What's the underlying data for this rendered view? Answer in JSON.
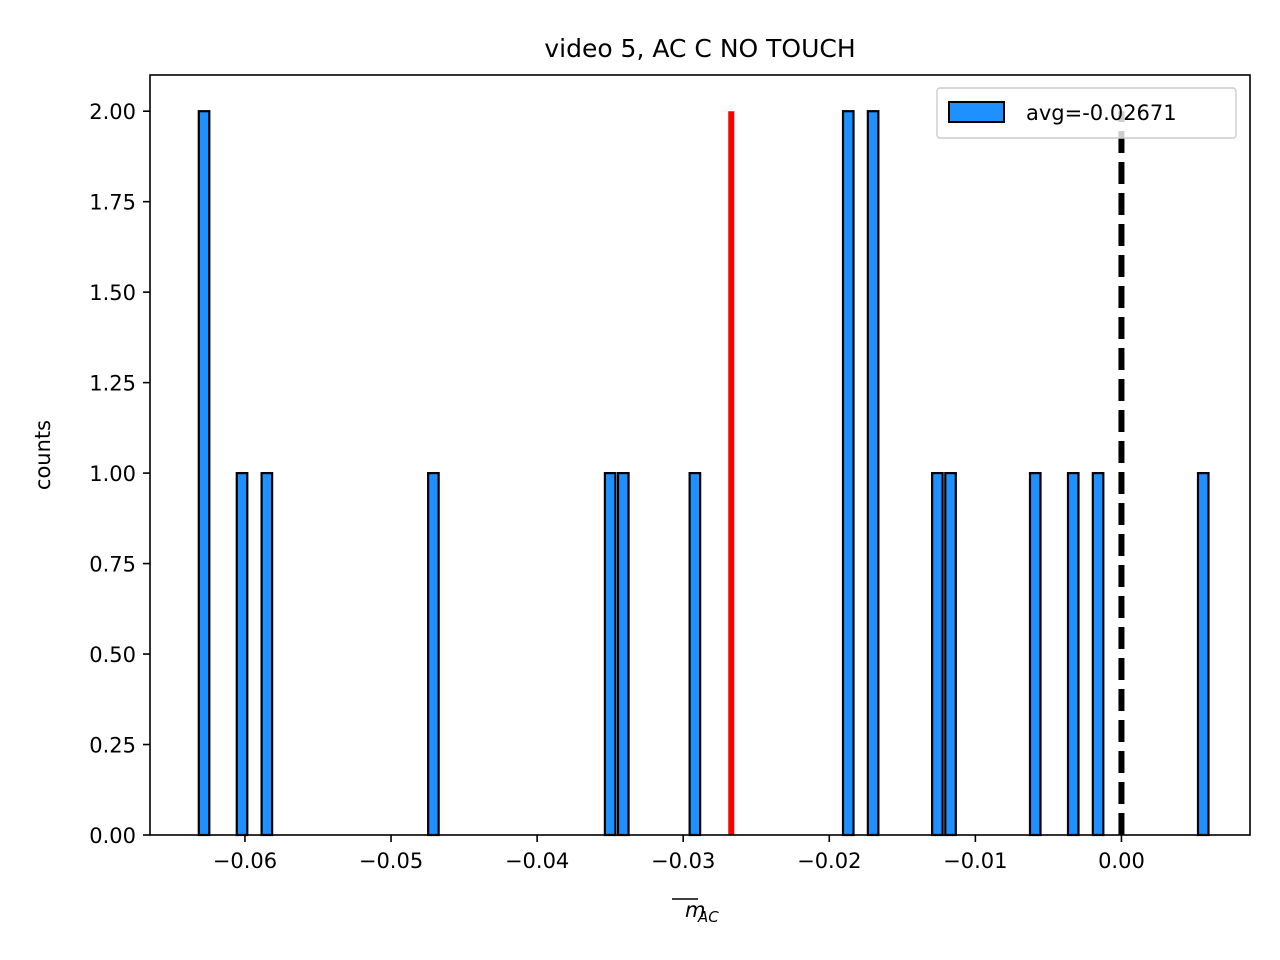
{
  "chart_data": {
    "type": "bar",
    "title": "video 5, AC C NO TOUCH",
    "xlabel_base": "m",
    "xlabel_sub": "AC",
    "ylabel": "counts",
    "xlim": [
      -0.0665,
      0.0088
    ],
    "ylim": [
      0,
      2.1
    ],
    "bin_width": 0.00072,
    "bar_color": "#1e90ff",
    "edge_color": "#000000",
    "xticks": [
      {
        "value": -0.06,
        "label": "−0.06"
      },
      {
        "value": -0.05,
        "label": "−0.05"
      },
      {
        "value": -0.04,
        "label": "−0.04"
      },
      {
        "value": -0.03,
        "label": "−0.03"
      },
      {
        "value": -0.02,
        "label": "−0.02"
      },
      {
        "value": -0.01,
        "label": "−0.01"
      },
      {
        "value": 0.0,
        "label": "0.00"
      }
    ],
    "yticks": [
      {
        "value": 0.0,
        "label": "0.00"
      },
      {
        "value": 0.25,
        "label": "0.25"
      },
      {
        "value": 0.5,
        "label": "0.50"
      },
      {
        "value": 0.75,
        "label": "0.75"
      },
      {
        "value": 1.0,
        "label": "1.00"
      },
      {
        "value": 1.25,
        "label": "1.25"
      },
      {
        "value": 1.5,
        "label": "1.50"
      },
      {
        "value": 1.75,
        "label": "1.75"
      },
      {
        "value": 2.0,
        "label": "2.00"
      }
    ],
    "bins": [
      {
        "x": -0.0628,
        "count": 2
      },
      {
        "x": -0.0602,
        "count": 1
      },
      {
        "x": -0.0585,
        "count": 1
      },
      {
        "x": -0.0471,
        "count": 1
      },
      {
        "x": -0.035,
        "count": 1
      },
      {
        "x": -0.0341,
        "count": 1
      },
      {
        "x": -0.0292,
        "count": 1
      },
      {
        "x": -0.0187,
        "count": 2
      },
      {
        "x": -0.017,
        "count": 2
      },
      {
        "x": -0.0126,
        "count": 1
      },
      {
        "x": -0.0117,
        "count": 1
      },
      {
        "x": -0.0059,
        "count": 1
      },
      {
        "x": -0.0033,
        "count": 1
      },
      {
        "x": -0.0016,
        "count": 1
      },
      {
        "x": 0.0056,
        "count": 1
      }
    ],
    "avg_line": {
      "x": -0.02671,
      "y_top": 2.0,
      "color": "#ff0000"
    },
    "zero_line": {
      "x": 0.0,
      "y_top": 2.0,
      "color": "#000000",
      "style": "dashed"
    },
    "legend": {
      "label": "avg=-0.02671",
      "placement": "upper right"
    }
  }
}
